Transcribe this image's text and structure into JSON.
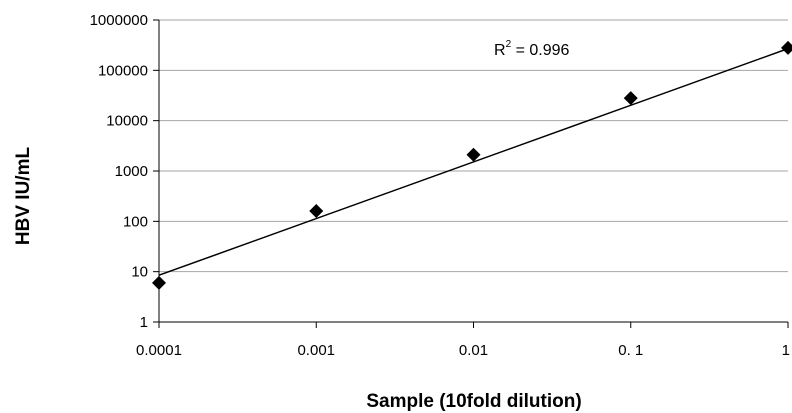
{
  "chart_data": {
    "type": "scatter",
    "xlabel": "Sample (10fold dilution)",
    "ylabel": "HBV IU/mL",
    "x_scale": "log",
    "y_scale": "log",
    "xlim": [
      0.0001,
      1
    ],
    "ylim": [
      1,
      1000000
    ],
    "x_tick_labels": [
      "0.0001",
      "0.001",
      "0.01",
      "0. 1",
      "1"
    ],
    "y_tick_labels": [
      "1",
      "10",
      "100",
      "1000",
      "10000",
      "100000",
      "1000000"
    ],
    "grid": "horizontal",
    "points": [
      {
        "x": 0.0001,
        "y": 6
      },
      {
        "x": 0.001,
        "y": 160
      },
      {
        "x": 0.01,
        "y": 2100
      },
      {
        "x": 0.1,
        "y": 28000
      },
      {
        "x": 1,
        "y": 280000
      }
    ],
    "trendline": {
      "type": "power",
      "from": [
        0.0001,
        8.5
      ],
      "to": [
        1,
        270000
      ]
    },
    "annotation": {
      "r_label": "R",
      "r_sup": "2",
      "r_text": " = 0.996"
    },
    "marker": "diamond",
    "color": "#000000"
  }
}
